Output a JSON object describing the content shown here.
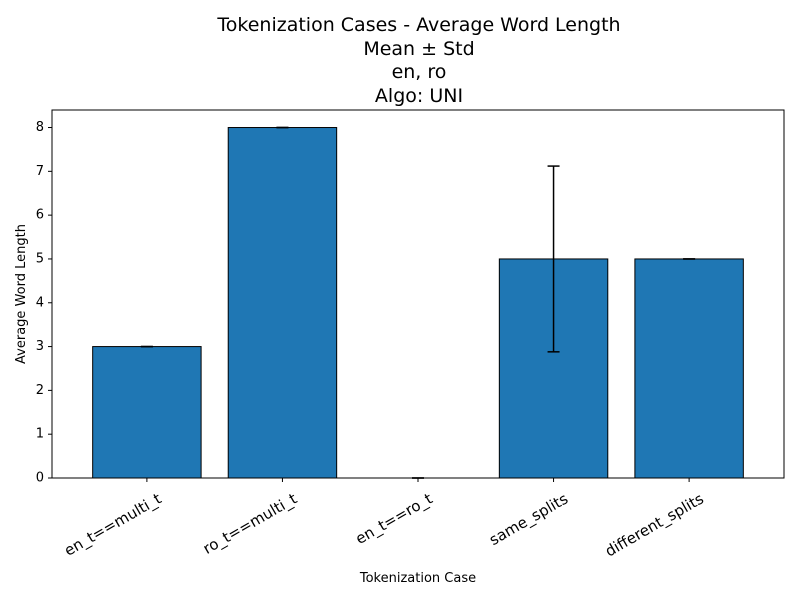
{
  "chart_data": {
    "type": "bar",
    "title_lines": [
      "Tokenization Cases - Average Word Length",
      "Mean ± Std",
      "en, ro",
      "Algo: UNI"
    ],
    "xlabel": "Tokenization Case",
    "ylabel": "Average Word Length",
    "categories": [
      "en_t==multi_t",
      "ro_t==multi_t",
      "en_t==ro_t",
      "same_splits",
      "different_splits"
    ],
    "values": [
      3,
      8,
      0,
      5,
      5
    ],
    "errors": [
      0,
      0,
      0,
      2.12,
      0
    ],
    "ylim": [
      0,
      8.4
    ],
    "yticks": [
      "0",
      "1",
      "2",
      "3",
      "4",
      "5",
      "6",
      "7",
      "8"
    ],
    "bar_color": "#1f77b4",
    "edge_color": "#000000",
    "grid": false,
    "legend": "none"
  }
}
